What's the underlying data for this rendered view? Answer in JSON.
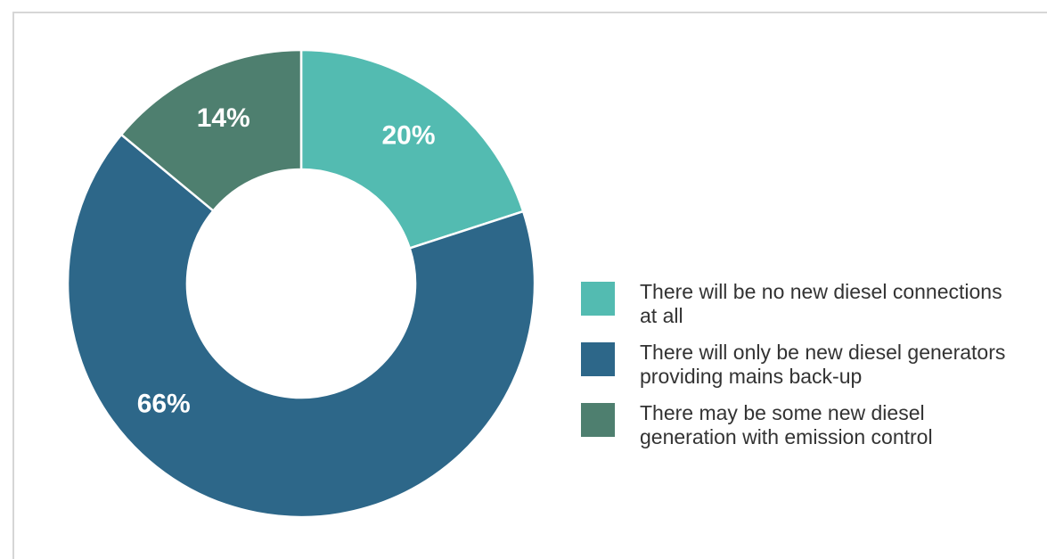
{
  "chart_data": {
    "type": "pie",
    "donut": true,
    "start_angle_deg": 0,
    "slices": [
      {
        "label": "There will be no new diesel connections at all",
        "value": 20,
        "display": "20%",
        "color": "#53bbb1"
      },
      {
        "label": "There will only be new diesel generators providing mains back-up",
        "value": 66,
        "display": "66%",
        "color": "#2d6789"
      },
      {
        "label": "There may be some new diesel generation with emission control",
        "value": 14,
        "display": "14%",
        "color": "#4e7f6f"
      }
    ],
    "legend_position": "right"
  }
}
